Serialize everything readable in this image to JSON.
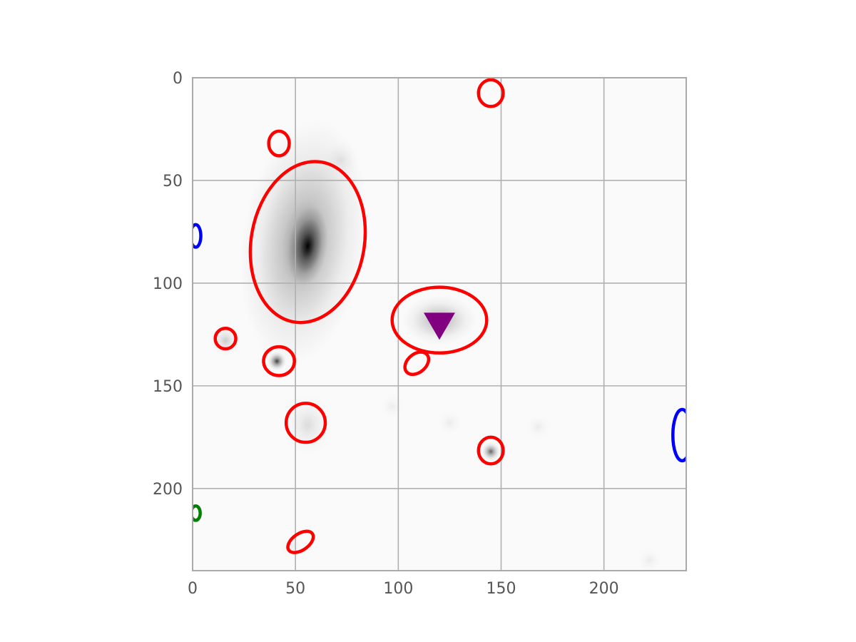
{
  "chart_data": {
    "type": "scatter",
    "title": "",
    "xlabel": "",
    "ylabel": "",
    "xlim": [
      0,
      240
    ],
    "ylim": [
      240,
      0
    ],
    "y_inverted": true,
    "grid": true,
    "background": "grayscale astronomical image (inverted: dark sources on white)",
    "x_ticks": [
      0,
      50,
      100,
      150,
      200
    ],
    "y_ticks": [
      0,
      50,
      100,
      150,
      200
    ],
    "x_tick_labels": [
      "0",
      "50",
      "100",
      "150",
      "200"
    ],
    "y_tick_labels": [
      "0",
      "50",
      "100",
      "150",
      "200"
    ],
    "colors": {
      "grid": "#b0b0b0",
      "axes": "#aaaaaa",
      "tick_text": "#555555"
    },
    "sources": [
      {
        "x": 56,
        "y": 82,
        "peak": 1.0,
        "sx": 3.2,
        "sy": 6.5,
        "angle": 8
      },
      {
        "x": 54,
        "y": 80,
        "peak": 0.45,
        "sx": 10,
        "sy": 20,
        "angle": 8
      },
      {
        "x": 120,
        "y": 118,
        "peak": 0.35,
        "sx": 6,
        "sy": 4,
        "angle": 0
      },
      {
        "x": 41,
        "y": 138,
        "peak": 0.75,
        "sx": 1.5,
        "sy": 1.5,
        "angle": 0
      },
      {
        "x": 16,
        "y": 128,
        "peak": 0.18,
        "sx": 2.5,
        "sy": 2.5,
        "angle": 0
      },
      {
        "x": 145,
        "y": 182,
        "peak": 0.6,
        "sx": 1.5,
        "sy": 1.5,
        "angle": 0
      },
      {
        "x": 56,
        "y": 169,
        "peak": 0.12,
        "sx": 4,
        "sy": 5,
        "angle": 0
      },
      {
        "x": 72,
        "y": 40,
        "peak": 0.08,
        "sx": 3,
        "sy": 3,
        "angle": 0
      },
      {
        "x": 125,
        "y": 168,
        "peak": 0.06,
        "sx": 2,
        "sy": 2,
        "angle": 0
      },
      {
        "x": 168,
        "y": 170,
        "peak": 0.06,
        "sx": 2,
        "sy": 2,
        "angle": 0
      },
      {
        "x": 222,
        "y": 235,
        "peak": 0.06,
        "sx": 2,
        "sy": 2,
        "angle": 0
      },
      {
        "x": 48,
        "y": 228,
        "peak": 0.06,
        "sx": 2,
        "sy": 2,
        "angle": 0
      },
      {
        "x": 97,
        "y": 160,
        "peak": 0.05,
        "sx": 2,
        "sy": 2,
        "angle": 0
      }
    ],
    "apertures": [
      {
        "cx": 145,
        "cy": 7.5,
        "rx": 6,
        "ry": 6.5,
        "angle": 0,
        "color": "#ff0000"
      },
      {
        "cx": 42,
        "cy": 32,
        "rx": 5,
        "ry": 6,
        "angle": 0,
        "color": "#ff0000"
      },
      {
        "cx": 56,
        "cy": 80,
        "rx": 27.5,
        "ry": 39.5,
        "angle": 10,
        "color": "#ff0000"
      },
      {
        "cx": 120,
        "cy": 118,
        "rx": 23,
        "ry": 16,
        "angle": 0,
        "color": "#ff0000"
      },
      {
        "cx": 16,
        "cy": 127,
        "rx": 5,
        "ry": 5,
        "angle": 0,
        "color": "#ff0000"
      },
      {
        "cx": 42,
        "cy": 138,
        "rx": 7.5,
        "ry": 7,
        "angle": 0,
        "color": "#ff0000"
      },
      {
        "cx": 109,
        "cy": 139,
        "rx": 6.5,
        "ry": 4.5,
        "angle": -40,
        "color": "#ff0000"
      },
      {
        "cx": 55,
        "cy": 168,
        "rx": 9.5,
        "ry": 9.5,
        "angle": 0,
        "color": "#ff0000"
      },
      {
        "cx": 145,
        "cy": 181.5,
        "rx": 6,
        "ry": 6.5,
        "angle": 0,
        "color": "#ff0000"
      },
      {
        "cx": 52.5,
        "cy": 226,
        "rx": 7,
        "ry": 4,
        "angle": -35,
        "color": "#ff0000"
      },
      {
        "cx": 1.5,
        "cy": 77,
        "rx": 2.5,
        "ry": 5.5,
        "angle": 0,
        "color": "#0000ff"
      },
      {
        "cx": 238,
        "cy": 174,
        "rx": 4.5,
        "ry": 12.5,
        "angle": 0,
        "color": "#0000ff"
      },
      {
        "cx": 1.5,
        "cy": 212,
        "rx": 2.2,
        "ry": 3.5,
        "angle": 0,
        "color": "#008000"
      }
    ],
    "markers": [
      {
        "x": 120,
        "y": 121,
        "shape": "triangle-down",
        "color": "#800080"
      }
    ]
  }
}
